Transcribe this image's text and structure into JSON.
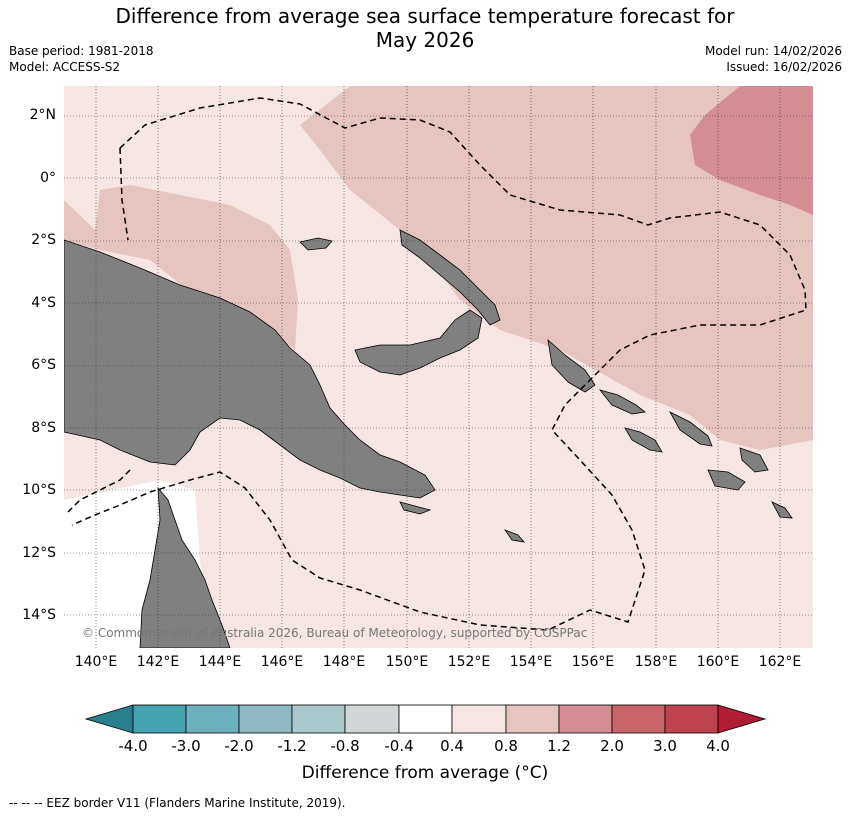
{
  "title_line1": "Difference from average sea surface temperature forecast for",
  "title_line2": "May 2026",
  "base_period": "Base period: 1981-2018",
  "model": "Model: ACCESS-S2",
  "model_run": "Model run: 14/02/2026",
  "issued": "Issued: 16/02/2026",
  "lat_labels": [
    "2°N",
    "0°",
    "2°S",
    "4°S",
    "6°S",
    "8°S",
    "10°S",
    "12°S",
    "14°S"
  ],
  "lon_labels": [
    "140°E",
    "142°E",
    "144°E",
    "146°E",
    "148°E",
    "150°E",
    "152°E",
    "154°E",
    "156°E",
    "158°E",
    "160°E",
    "162°E"
  ],
  "copyright": "© Commonwealth of Australia 2026, Bureau of Meteorology, supported by COSPPac",
  "colorbar": {
    "labels": [
      "-4.0",
      "-3.0",
      "-2.0",
      "-1.2",
      "-0.8",
      "-0.4",
      "0.4",
      "0.8",
      "1.2",
      "2.0",
      "3.0",
      "4.0"
    ],
    "colors": [
      "#2a7f8f",
      "#45a3b1",
      "#6db1bf",
      "#8eb9c3",
      "#a8c8cc",
      "#d2d6d7",
      "#ffffff",
      "#f5e6e4",
      "#e6c4bf",
      "#d48d94",
      "#c9646c",
      "#be424f",
      "#b01b35"
    ],
    "title": "Difference from average (°C)"
  },
  "colors": {
    "land": "#808080",
    "anomaly_0.4_0.8": "#f5e6e4",
    "anomaly_0.8_1.2": "#e6c4bf",
    "anomaly_1.2_2.0": "#d48d94"
  },
  "footnote": "--  --  -- EEZ border V11 (Flanders Marine Institute, 2019)."
}
